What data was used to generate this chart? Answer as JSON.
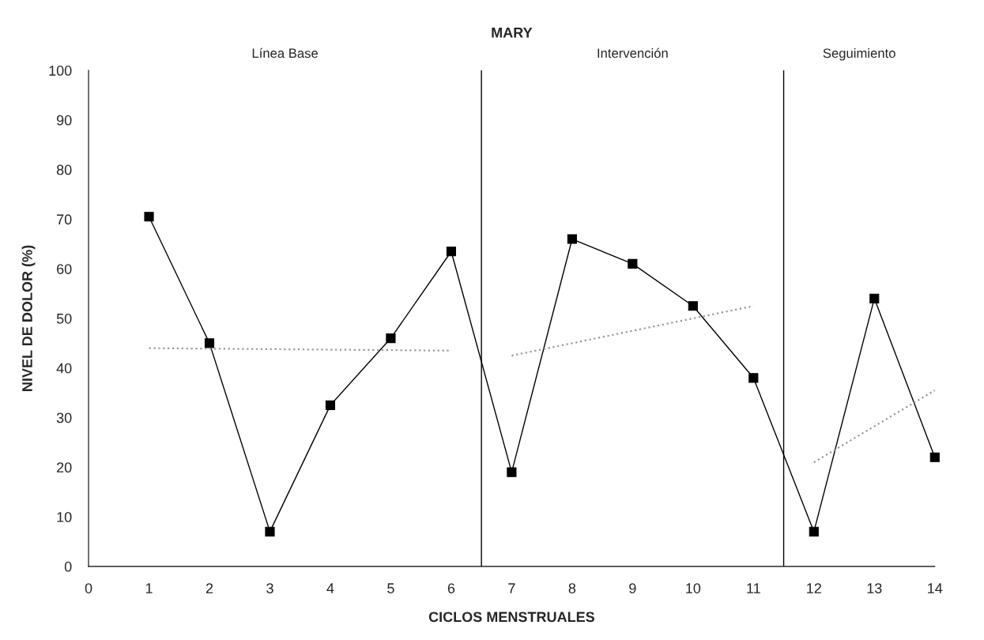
{
  "chart_data": {
    "type": "line",
    "title": "MARY",
    "xlabel": "CICLOS MENSTRUALES",
    "ylabel": "NIVEL DE DOLOR (%)",
    "x": [
      1,
      2,
      3,
      4,
      5,
      6,
      7,
      8,
      9,
      10,
      11,
      12,
      13,
      14
    ],
    "series": [
      {
        "color": "#000000",
        "marker": "square",
        "line_style": "solid",
        "values": [
          70.5,
          45,
          7,
          32.5,
          46,
          63.5,
          19,
          66,
          61,
          52.5,
          38,
          7,
          54,
          22
        ]
      },
      {
        "color": "#999999",
        "marker": "none",
        "line_style": "dotted",
        "x": [
          1,
          6
        ],
        "values": [
          44,
          43.5
        ]
      },
      {
        "color": "#999999",
        "marker": "none",
        "line_style": "dotted",
        "x": [
          7,
          11
        ],
        "values": [
          42.5,
          52.5
        ]
      },
      {
        "color": "#999999",
        "marker": "none",
        "line_style": "dotted",
        "x": [
          12,
          14
        ],
        "values": [
          21,
          35.5
        ]
      }
    ],
    "xlim": [
      0,
      14
    ],
    "xticks": [
      0,
      1,
      2,
      3,
      4,
      5,
      6,
      7,
      8,
      9,
      10,
      11,
      12,
      13,
      14
    ],
    "ylim": [
      0,
      100
    ],
    "yticks": [
      0,
      10,
      20,
      30,
      40,
      50,
      60,
      70,
      80,
      90,
      100
    ],
    "ref_lines": [
      {
        "axis": "x",
        "value": 6.5,
        "color": "#000000"
      },
      {
        "axis": "x",
        "value": 11.5,
        "color": "#000000"
      }
    ],
    "annotations": [
      "Línea Base",
      "Intervención",
      "Seguimiento"
    ],
    "grid": false,
    "legend": false
  }
}
